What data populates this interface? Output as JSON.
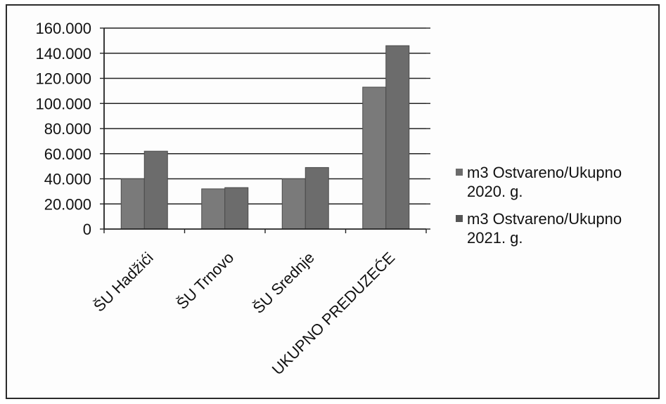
{
  "chart_data": {
    "type": "bar",
    "categories": [
      "ŠU Hadžići",
      "ŠU Trnovo",
      "ŠU Srednje",
      "UKUPNO PREDUZEĆE"
    ],
    "series": [
      {
        "name": "m3 Ostvareno/Ukupno 2020. g.",
        "values": [
          40000,
          32000,
          40000,
          113000
        ],
        "color": "#777777"
      },
      {
        "name": "m3 Ostvareno/Ukupno 2021. g.",
        "values": [
          62000,
          33000,
          49000,
          146000
        ],
        "color": "#6a6a6a"
      }
    ],
    "ylim": [
      0,
      160000
    ],
    "yticks": [
      0,
      20000,
      40000,
      60000,
      80000,
      100000,
      120000,
      140000,
      160000
    ],
    "ytick_labels": [
      "0",
      "20.000",
      "40.000",
      "60.000",
      "80.000",
      "100.000",
      "120.000",
      "140.000",
      "160.000"
    ],
    "grid": true,
    "legend_position": "right",
    "title": "",
    "xlabel": "",
    "ylabel": ""
  }
}
